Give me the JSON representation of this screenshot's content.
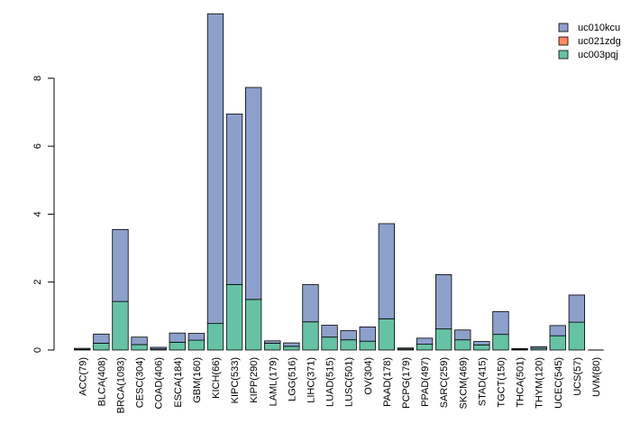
{
  "chart_data": {
    "type": "bar",
    "stacked": true,
    "title": "",
    "xlabel": "",
    "ylabel": "",
    "ylim": [
      0,
      10
    ],
    "yticks": [
      0,
      2,
      4,
      6,
      8
    ],
    "grid": false,
    "legend_position": "top-right",
    "categories": [
      "ACC(79)",
      "BLCA(408)",
      "BRCA(1093)",
      "CESC(304)",
      "COAD(406)",
      "ESCA(184)",
      "GBM(160)",
      "KICH(66)",
      "KIPC(533)",
      "KIPP(290)",
      "LAML(179)",
      "LGG(516)",
      "LIHC(371)",
      "LUAD(515)",
      "LUSC(501)",
      "OV(304)",
      "PAAD(178)",
      "PCPG(179)",
      "PPAD(497)",
      "SARC(259)",
      "SKCM(469)",
      "STAD(415)",
      "TGCT(150)",
      "THCA(501)",
      "THYM(120)",
      "UCEC(545)",
      "UCS(57)",
      "UVM(80)"
    ],
    "series": [
      {
        "name": "uc003pqj",
        "color": "#66c2a5",
        "values": [
          0.02,
          0.2,
          1.43,
          0.16,
          0.03,
          0.23,
          0.29,
          0.78,
          1.93,
          1.49,
          0.2,
          0.11,
          0.83,
          0.38,
          0.3,
          0.26,
          0.92,
          0.03,
          0.17,
          0.62,
          0.3,
          0.15,
          0.46,
          0.02,
          0.05,
          0.42,
          0.82,
          0.0
        ]
      },
      {
        "name": "uc021zdg",
        "color": "#fc8d62",
        "values": [
          0,
          0,
          0,
          0,
          0,
          0,
          0,
          0,
          0,
          0,
          0,
          0,
          0,
          0,
          0,
          0,
          0,
          0,
          0,
          0,
          0,
          0,
          0,
          0,
          0,
          0,
          0,
          0
        ]
      },
      {
        "name": "uc010kcu",
        "color": "#8da0cb",
        "values": [
          0.03,
          0.27,
          2.12,
          0.22,
          0.05,
          0.27,
          0.2,
          9.12,
          5.02,
          6.24,
          0.07,
          0.1,
          1.1,
          0.35,
          0.27,
          0.42,
          2.8,
          0.03,
          0.18,
          1.6,
          0.29,
          0.1,
          0.67,
          0.02,
          0.05,
          0.3,
          0.8,
          0.0
        ]
      }
    ]
  }
}
